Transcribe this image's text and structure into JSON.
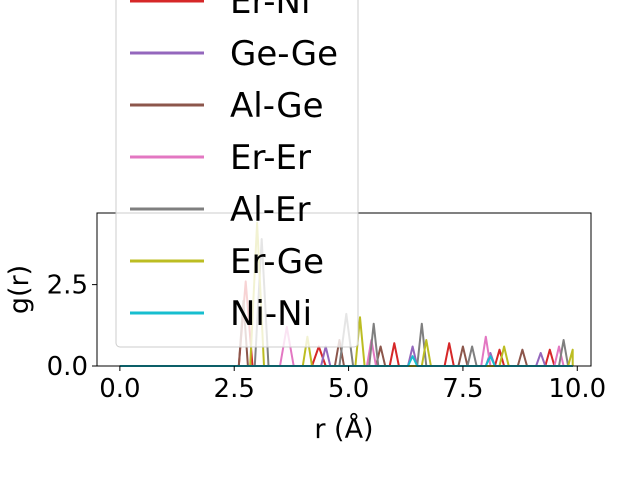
{
  "chart_data": {
    "type": "line",
    "title": "",
    "xlabel": "r (Å)",
    "ylabel": "g(r)",
    "xlim": [
      -0.5,
      10.3
    ],
    "ylim": [
      0,
      4.7
    ],
    "xticks": [
      {
        "value": 0.0,
        "label": "0.0"
      },
      {
        "value": 2.5,
        "label": "2.5"
      },
      {
        "value": 5.0,
        "label": "5.0"
      },
      {
        "value": 7.5,
        "label": "7.5"
      },
      {
        "value": 10.0,
        "label": "10.0"
      }
    ],
    "yticks": [
      {
        "value": 0.0,
        "label": "0.0"
      },
      {
        "value": 2.5,
        "label": "2.5"
      }
    ],
    "grid": false,
    "legend_position": "upper center, overlapping plot",
    "series": [
      {
        "name": "Er-Ni",
        "color": "#d62728",
        "points": [
          [
            0,
            0
          ],
          [
            2.6,
            0
          ],
          [
            2.75,
            2.6
          ],
          [
            2.9,
            0
          ],
          [
            4.2,
            0
          ],
          [
            4.35,
            0.6
          ],
          [
            4.5,
            0
          ],
          [
            5.9,
            0
          ],
          [
            6.0,
            0.7
          ],
          [
            6.1,
            0
          ],
          [
            7.1,
            0
          ],
          [
            7.2,
            0.7
          ],
          [
            7.3,
            0
          ],
          [
            8.2,
            0
          ],
          [
            8.3,
            0.5
          ],
          [
            8.4,
            0
          ],
          [
            9.3,
            0
          ],
          [
            9.4,
            0.5
          ],
          [
            9.5,
            0
          ],
          [
            9.9,
            0
          ]
        ]
      },
      {
        "name": "Ge-Ge",
        "color": "#9467bd",
        "points": [
          [
            0,
            0
          ],
          [
            4.4,
            0
          ],
          [
            4.5,
            0.6
          ],
          [
            4.6,
            0
          ],
          [
            6.3,
            0
          ],
          [
            6.4,
            0.6
          ],
          [
            6.5,
            0
          ],
          [
            8.0,
            0
          ],
          [
            8.1,
            0.4
          ],
          [
            8.2,
            0
          ],
          [
            9.1,
            0
          ],
          [
            9.2,
            0.4
          ],
          [
            9.3,
            0
          ],
          [
            9.9,
            0
          ]
        ]
      },
      {
        "name": "Al-Ge",
        "color": "#8c564b",
        "points": [
          [
            0,
            0
          ],
          [
            2.6,
            0
          ],
          [
            2.7,
            2.0
          ],
          [
            2.8,
            0
          ],
          [
            4.7,
            0
          ],
          [
            4.8,
            0.8
          ],
          [
            4.9,
            0
          ],
          [
            5.6,
            0
          ],
          [
            5.7,
            0.6
          ],
          [
            5.8,
            0
          ],
          [
            7.4,
            0
          ],
          [
            7.5,
            0.6
          ],
          [
            7.6,
            0
          ],
          [
            8.7,
            0
          ],
          [
            8.8,
            0.5
          ],
          [
            8.9,
            0
          ],
          [
            9.9,
            0
          ]
        ]
      },
      {
        "name": "Er-Er",
        "color": "#e377c2",
        "points": [
          [
            0,
            0
          ],
          [
            3.5,
            0
          ],
          [
            3.65,
            1.2
          ],
          [
            3.8,
            0
          ],
          [
            5.4,
            0
          ],
          [
            5.5,
            0.8
          ],
          [
            5.6,
            0
          ],
          [
            7.9,
            0
          ],
          [
            8.0,
            0.9
          ],
          [
            8.1,
            0
          ],
          [
            9.5,
            0
          ],
          [
            9.6,
            0.6
          ],
          [
            9.7,
            0
          ],
          [
            9.9,
            0
          ]
        ]
      },
      {
        "name": "Al-Er",
        "color": "#7f7f7f",
        "points": [
          [
            0,
            0
          ],
          [
            2.95,
            0
          ],
          [
            3.1,
            3.9
          ],
          [
            3.25,
            0
          ],
          [
            4.8,
            0
          ],
          [
            4.95,
            1.6
          ],
          [
            5.1,
            0
          ],
          [
            5.45,
            0
          ],
          [
            5.55,
            1.3
          ],
          [
            5.65,
            0
          ],
          [
            6.5,
            0
          ],
          [
            6.6,
            1.3
          ],
          [
            6.7,
            0
          ],
          [
            7.6,
            0
          ],
          [
            7.7,
            0.6
          ],
          [
            7.8,
            0
          ],
          [
            9.6,
            0
          ],
          [
            9.7,
            0.8
          ],
          [
            9.8,
            0
          ],
          [
            9.9,
            0
          ]
        ]
      },
      {
        "name": "Er-Ge",
        "color": "#bcbd22",
        "points": [
          [
            0,
            0
          ],
          [
            2.85,
            0
          ],
          [
            3.0,
            4.4
          ],
          [
            3.15,
            0
          ],
          [
            4.0,
            0
          ],
          [
            4.1,
            0.9
          ],
          [
            4.2,
            0
          ],
          [
            5.15,
            0
          ],
          [
            5.25,
            1.5
          ],
          [
            5.35,
            0
          ],
          [
            6.6,
            0
          ],
          [
            6.7,
            0.8
          ],
          [
            6.8,
            0
          ],
          [
            8.3,
            0
          ],
          [
            8.4,
            0.6
          ],
          [
            8.5,
            0
          ],
          [
            9.8,
            0
          ],
          [
            9.9,
            0.5
          ],
          [
            9.9,
            0
          ]
        ]
      },
      {
        "name": "Ni-Ni",
        "color": "#17becf",
        "points": [
          [
            0,
            0
          ],
          [
            6.3,
            0
          ],
          [
            6.4,
            0.3
          ],
          [
            6.5,
            0
          ],
          [
            8.0,
            0
          ],
          [
            8.1,
            0.3
          ],
          [
            8.2,
            0
          ],
          [
            9.9,
            0
          ]
        ]
      }
    ]
  }
}
